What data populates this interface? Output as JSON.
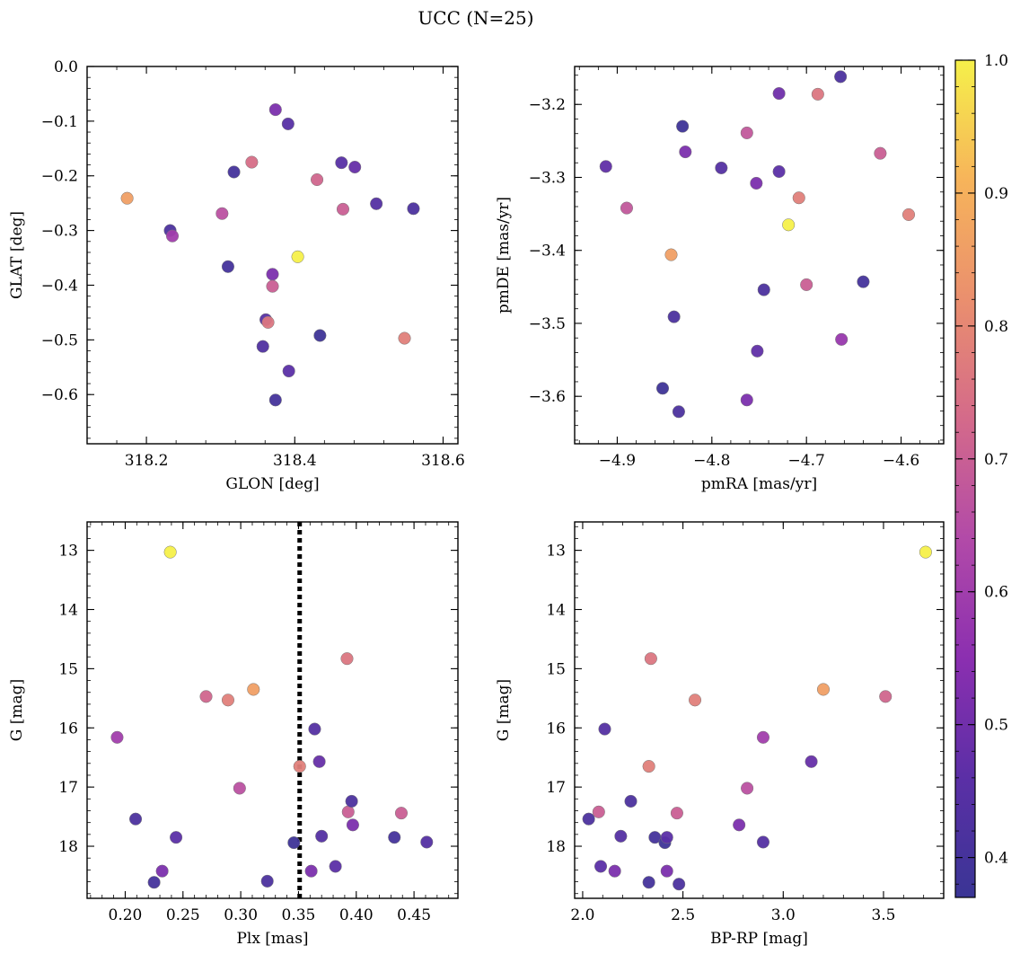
{
  "figure_title": "UCC (N=25)",
  "colorbar": {
    "range": [
      0.37,
      1.0
    ],
    "ticks": [
      0.4,
      0.5,
      0.6,
      0.7,
      0.8,
      0.9,
      1.0
    ],
    "tick_labels": [
      "0.4",
      "0.5",
      "0.6",
      "0.7",
      "0.8",
      "0.9",
      "1.0"
    ],
    "colormap": "plasma",
    "stops": [
      "#3a3595",
      "#5b2fa6",
      "#8b2fb0",
      "#b24aa8",
      "#d46a8a",
      "#ea8f6e",
      "#f7b45a",
      "#f5f04a"
    ]
  },
  "chart_data": [
    {
      "type": "scatter",
      "id": "glon-glat",
      "xlabel": "GLON [deg]",
      "ylabel": "GLAT [deg]",
      "xlim": [
        318.12,
        318.62
      ],
      "ylim": [
        -0.69,
        0.0
      ],
      "y_inverted": false,
      "xticks": [
        318.2,
        318.4,
        318.6
      ],
      "xtick_labels": [
        "318.2",
        "318.4",
        "318.6"
      ],
      "yticks": [
        0.0,
        -0.1,
        -0.2,
        -0.3,
        -0.4,
        -0.5,
        -0.6
      ],
      "ytick_labels": [
        "0.0",
        "−0.1",
        "−0.2",
        "−0.3",
        "−0.4",
        "−0.5",
        "−0.6"
      ],
      "points": [
        {
          "x": 318.174,
          "y": -0.241,
          "c": 0.86
        },
        {
          "x": 318.232,
          "y": -0.3,
          "c": 0.42
        },
        {
          "x": 318.235,
          "y": -0.31,
          "c": 0.6
        },
        {
          "x": 318.302,
          "y": -0.269,
          "c": 0.66
        },
        {
          "x": 318.31,
          "y": -0.366,
          "c": 0.4
        },
        {
          "x": 318.318,
          "y": -0.193,
          "c": 0.4
        },
        {
          "x": 318.342,
          "y": -0.175,
          "c": 0.74
        },
        {
          "x": 318.357,
          "y": -0.512,
          "c": 0.43
        },
        {
          "x": 318.361,
          "y": -0.463,
          "c": 0.45
        },
        {
          "x": 318.364,
          "y": -0.468,
          "c": 0.76
        },
        {
          "x": 318.37,
          "y": -0.38,
          "c": 0.52
        },
        {
          "x": 318.37,
          "y": -0.402,
          "c": 0.7
        },
        {
          "x": 318.374,
          "y": -0.079,
          "c": 0.52
        },
        {
          "x": 318.374,
          "y": -0.61,
          "c": 0.4
        },
        {
          "x": 318.391,
          "y": -0.105,
          "c": 0.45
        },
        {
          "x": 318.392,
          "y": -0.557,
          "c": 0.46
        },
        {
          "x": 318.404,
          "y": -0.348,
          "c": 1.0
        },
        {
          "x": 318.43,
          "y": -0.207,
          "c": 0.72
        },
        {
          "x": 318.434,
          "y": -0.492,
          "c": 0.38
        },
        {
          "x": 318.463,
          "y": -0.176,
          "c": 0.45
        },
        {
          "x": 318.465,
          "y": -0.261,
          "c": 0.7
        },
        {
          "x": 318.481,
          "y": -0.184,
          "c": 0.48
        },
        {
          "x": 318.51,
          "y": -0.251,
          "c": 0.44
        },
        {
          "x": 318.548,
          "y": -0.497,
          "c": 0.78
        },
        {
          "x": 318.56,
          "y": -0.26,
          "c": 0.42
        }
      ]
    },
    {
      "type": "scatter",
      "id": "pmra-pmde",
      "xlabel": "pmRA [mas/yr]",
      "ylabel": "pmDE [mas/yr]",
      "xlim": [
        -4.945,
        -4.555
      ],
      "ylim": [
        -3.665,
        -3.148
      ],
      "y_inverted": false,
      "xticks": [
        -4.9,
        -4.8,
        -4.7,
        -4.6
      ],
      "xtick_labels": [
        "−4.9",
        "−4.8",
        "−4.7",
        "−4.6"
      ],
      "yticks": [
        -3.2,
        -3.3,
        -3.4,
        -3.5,
        -3.6
      ],
      "ytick_labels": [
        "−3.2",
        "−3.3",
        "−3.4",
        "−3.5",
        "−3.6"
      ],
      "points": [
        {
          "x": -4.912,
          "y": -3.285,
          "c": 0.47
        },
        {
          "x": -4.89,
          "y": -3.342,
          "c": 0.68
        },
        {
          "x": -4.852,
          "y": -3.589,
          "c": 0.38
        },
        {
          "x": -4.843,
          "y": -3.406,
          "c": 0.86
        },
        {
          "x": -4.84,
          "y": -3.491,
          "c": 0.42
        },
        {
          "x": -4.835,
          "y": -3.621,
          "c": 0.42
        },
        {
          "x": -4.831,
          "y": -3.23,
          "c": 0.38
        },
        {
          "x": -4.828,
          "y": -3.265,
          "c": 0.52
        },
        {
          "x": -4.79,
          "y": -3.287,
          "c": 0.44
        },
        {
          "x": -4.763,
          "y": -3.239,
          "c": 0.68
        },
        {
          "x": -4.763,
          "y": -3.605,
          "c": 0.52
        },
        {
          "x": -4.753,
          "y": -3.308,
          "c": 0.52
        },
        {
          "x": -4.752,
          "y": -3.538,
          "c": 0.47
        },
        {
          "x": -4.745,
          "y": -3.454,
          "c": 0.42
        },
        {
          "x": -4.729,
          "y": -3.185,
          "c": 0.5
        },
        {
          "x": -4.729,
          "y": -3.292,
          "c": 0.46
        },
        {
          "x": -4.719,
          "y": -3.365,
          "c": 1.0
        },
        {
          "x": -4.708,
          "y": -3.328,
          "c": 0.78
        },
        {
          "x": -4.7,
          "y": -3.447,
          "c": 0.7
        },
        {
          "x": -4.688,
          "y": -3.186,
          "c": 0.76
        },
        {
          "x": -4.664,
          "y": -3.162,
          "c": 0.42
        },
        {
          "x": -4.663,
          "y": -3.522,
          "c": 0.58
        },
        {
          "x": -4.64,
          "y": -3.443,
          "c": 0.4
        },
        {
          "x": -4.622,
          "y": -3.267,
          "c": 0.7
        },
        {
          "x": -4.592,
          "y": -3.351,
          "c": 0.78
        }
      ]
    },
    {
      "type": "scatter",
      "id": "plx-g",
      "xlabel": "Plx [mas]",
      "ylabel": "G [mag]",
      "xlim": [
        0.167,
        0.488
      ],
      "ylim": [
        18.88,
        12.52
      ],
      "y_inverted": true,
      "xticks": [
        0.2,
        0.25,
        0.3,
        0.35,
        0.4,
        0.45
      ],
      "xtick_labels": [
        "0.20",
        "0.25",
        "0.30",
        "0.35",
        "0.40",
        "0.45"
      ],
      "yticks": [
        13,
        14,
        15,
        16,
        17,
        18
      ],
      "ytick_labels": [
        "13",
        "14",
        "15",
        "16",
        "17",
        "18"
      ],
      "vline": 0.351,
      "points": [
        {
          "x": 0.193,
          "y": 16.16,
          "c": 0.6
        },
        {
          "x": 0.209,
          "y": 17.54,
          "c": 0.42
        },
        {
          "x": 0.225,
          "y": 18.61,
          "c": 0.4
        },
        {
          "x": 0.232,
          "y": 18.42,
          "c": 0.52
        },
        {
          "x": 0.239,
          "y": 13.03,
          "c": 1.0
        },
        {
          "x": 0.244,
          "y": 17.85,
          "c": 0.46
        },
        {
          "x": 0.27,
          "y": 15.47,
          "c": 0.72
        },
        {
          "x": 0.289,
          "y": 15.53,
          "c": 0.78
        },
        {
          "x": 0.299,
          "y": 17.02,
          "c": 0.66
        },
        {
          "x": 0.311,
          "y": 15.35,
          "c": 0.86
        },
        {
          "x": 0.323,
          "y": 18.59,
          "c": 0.42
        },
        {
          "x": 0.346,
          "y": 17.94,
          "c": 0.38
        },
        {
          "x": 0.351,
          "y": 16.65,
          "c": 0.78
        },
        {
          "x": 0.361,
          "y": 18.42,
          "c": 0.52
        },
        {
          "x": 0.364,
          "y": 16.02,
          "c": 0.44
        },
        {
          "x": 0.368,
          "y": 16.57,
          "c": 0.48
        },
        {
          "x": 0.37,
          "y": 17.83,
          "c": 0.44
        },
        {
          "x": 0.382,
          "y": 18.34,
          "c": 0.46
        },
        {
          "x": 0.392,
          "y": 14.83,
          "c": 0.76
        },
        {
          "x": 0.393,
          "y": 17.42,
          "c": 0.7
        },
        {
          "x": 0.396,
          "y": 17.24,
          "c": 0.42
        },
        {
          "x": 0.397,
          "y": 17.64,
          "c": 0.52
        },
        {
          "x": 0.433,
          "y": 17.85,
          "c": 0.4
        },
        {
          "x": 0.439,
          "y": 17.44,
          "c": 0.7
        },
        {
          "x": 0.461,
          "y": 17.93,
          "c": 0.44
        }
      ]
    },
    {
      "type": "scatter",
      "id": "bprp-g",
      "xlabel": "BP-RP [mag]",
      "ylabel": "G [mag]",
      "xlim": [
        1.96,
        3.8
      ],
      "ylim": [
        18.88,
        12.52
      ],
      "y_inverted": true,
      "xticks": [
        2.0,
        2.5,
        3.0,
        3.5
      ],
      "xtick_labels": [
        "2.0",
        "2.5",
        "3.0",
        "3.5"
      ],
      "yticks": [
        13,
        14,
        15,
        16,
        17,
        18
      ],
      "ytick_labels": [
        "13",
        "14",
        "15",
        "16",
        "17",
        "18"
      ],
      "points": [
        {
          "x": 2.03,
          "y": 17.54,
          "c": 0.42
        },
        {
          "x": 2.08,
          "y": 17.42,
          "c": 0.7
        },
        {
          "x": 2.09,
          "y": 18.34,
          "c": 0.46
        },
        {
          "x": 2.11,
          "y": 16.02,
          "c": 0.44
        },
        {
          "x": 2.16,
          "y": 18.42,
          "c": 0.52
        },
        {
          "x": 2.19,
          "y": 17.83,
          "c": 0.44
        },
        {
          "x": 2.24,
          "y": 17.24,
          "c": 0.42
        },
        {
          "x": 2.33,
          "y": 16.65,
          "c": 0.78
        },
        {
          "x": 2.33,
          "y": 18.61,
          "c": 0.4
        },
        {
          "x": 2.34,
          "y": 14.83,
          "c": 0.76
        },
        {
          "x": 2.36,
          "y": 17.85,
          "c": 0.4
        },
        {
          "x": 2.41,
          "y": 17.94,
          "c": 0.38
        },
        {
          "x": 2.42,
          "y": 17.85,
          "c": 0.46
        },
        {
          "x": 2.42,
          "y": 18.42,
          "c": 0.52
        },
        {
          "x": 2.47,
          "y": 17.44,
          "c": 0.7
        },
        {
          "x": 2.48,
          "y": 18.64,
          "c": 0.42
        },
        {
          "x": 2.56,
          "y": 15.53,
          "c": 0.78
        },
        {
          "x": 2.78,
          "y": 17.64,
          "c": 0.52
        },
        {
          "x": 2.82,
          "y": 17.02,
          "c": 0.66
        },
        {
          "x": 2.9,
          "y": 16.16,
          "c": 0.6
        },
        {
          "x": 2.9,
          "y": 17.93,
          "c": 0.44
        },
        {
          "x": 3.14,
          "y": 16.57,
          "c": 0.48
        },
        {
          "x": 3.2,
          "y": 15.35,
          "c": 0.86
        },
        {
          "x": 3.51,
          "y": 15.47,
          "c": 0.72
        },
        {
          "x": 3.71,
          "y": 13.03,
          "c": 1.0
        }
      ]
    }
  ]
}
